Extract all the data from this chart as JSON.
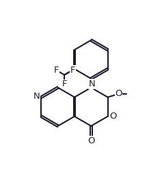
{
  "bg": "#ffffff",
  "lc": "#1c1c2e",
  "lw": 1.5,
  "fs": 9.5,
  "figsize": [
    2.18,
    2.64
  ],
  "dpi": 100,
  "xlim": [
    0.5,
    9.5
  ],
  "ylim": [
    0.5,
    11.5
  ]
}
